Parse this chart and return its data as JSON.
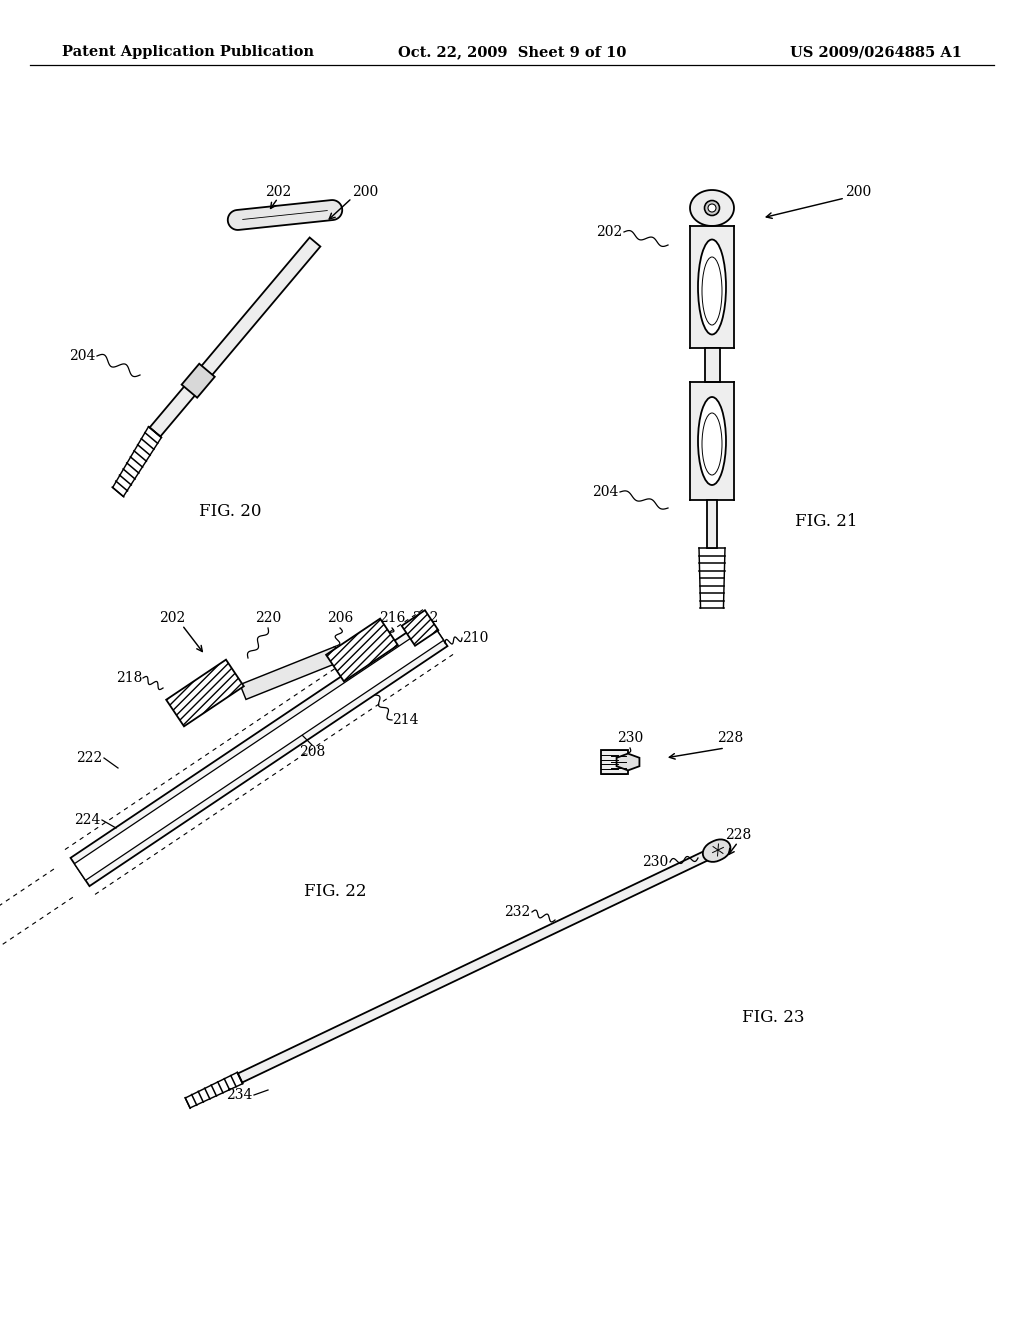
{
  "background_color": "#ffffff",
  "header_left": "Patent Application Publication",
  "header_center": "Oct. 22, 2009  Sheet 9 of 10",
  "header_right": "US 2009/0264885 A1",
  "header_fontsize": 10.5,
  "line_color": "#000000",
  "fig20_label": "FIG. 20",
  "fig21_label": "FIG. 21",
  "fig22_label": "FIG. 22",
  "fig23_label": "FIG. 23"
}
